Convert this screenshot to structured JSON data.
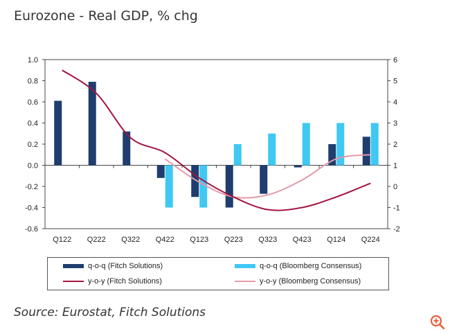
{
  "title": "Eurozone - Real GDP, % chg",
  "source": "Source: Eurostat, Fitch Solutions",
  "colors": {
    "fitch_bar": "#1f3d6e",
    "consensus_bar": "#3fc8f2",
    "fitch_line": "#a3153f",
    "consensus_line": "#e39aa8",
    "zoom_icon": "#e8603c"
  },
  "chart_data": {
    "type": "bar",
    "categories": [
      "Q122",
      "Q222",
      "Q322",
      "Q422",
      "Q123",
      "Q223",
      "Q323",
      "Q423",
      "Q124",
      "Q224"
    ],
    "y_left": {
      "lim": [
        -0.6,
        1.0
      ],
      "ticks": [
        "1.0",
        "0.8",
        "0.6",
        "0.4",
        "0.2",
        "0.0",
        "-0.2",
        "-0.4",
        "-0.6"
      ]
    },
    "y_right": {
      "lim": [
        -2,
        6
      ],
      "ticks": [
        "6",
        "5",
        "4",
        "3",
        "2",
        "1",
        "0",
        "-1",
        "-2"
      ]
    },
    "series": [
      {
        "name": "q-o-q (Fitch Solutions)",
        "type": "bar",
        "axis": "left",
        "values": [
          0.61,
          0.79,
          0.32,
          -0.12,
          -0.3,
          -0.4,
          -0.27,
          -0.02,
          0.2,
          0.27
        ]
      },
      {
        "name": "q-o-q (Bloomberg Consensus)",
        "type": "bar",
        "axis": "left",
        "values": [
          null,
          null,
          null,
          -0.4,
          -0.4,
          0.2,
          0.3,
          0.4,
          0.4,
          0.4
        ]
      },
      {
        "name": "y-o-y (Fitch Solutions)",
        "type": "line",
        "axis": "right",
        "values": [
          5.5,
          4.4,
          2.3,
          1.6,
          0.4,
          -0.5,
          -1.1,
          -1.0,
          -0.5,
          0.15
        ]
      },
      {
        "name": "y-o-y (Bloomberg Consensus)",
        "type": "line",
        "axis": "right",
        "values": [
          null,
          null,
          null,
          1.3,
          0.2,
          -0.5,
          -0.4,
          0.3,
          1.3,
          1.5
        ]
      }
    ],
    "legend_position": "bottom",
    "grid": false
  }
}
